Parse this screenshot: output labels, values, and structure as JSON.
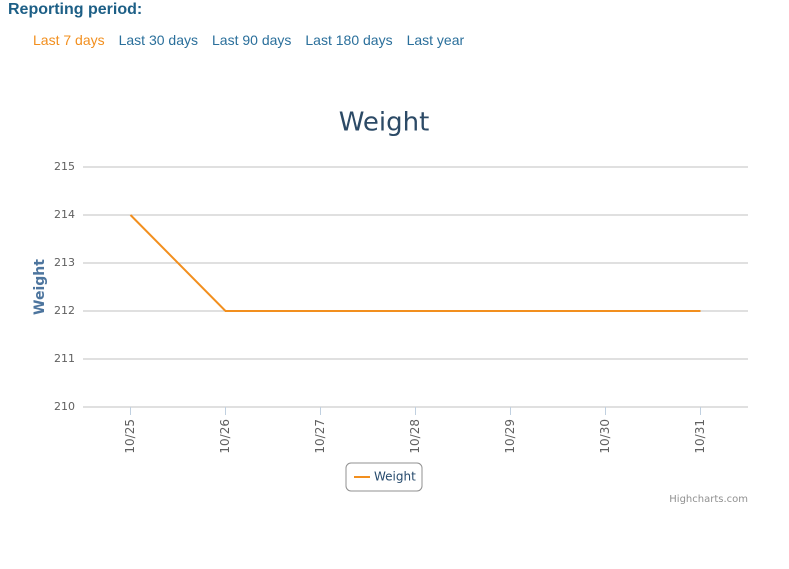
{
  "header": {
    "title": "Reporting period:"
  },
  "periods": [
    "Last 7 days",
    "Last 30 days",
    "Last 90 days",
    "Last 180 days",
    "Last year"
  ],
  "selected_period": 0,
  "chart_data": {
    "type": "line",
    "title": "Weight",
    "y_label": "Weight",
    "categories": [
      "10/25",
      "10/26",
      "10/27",
      "10/28",
      "10/29",
      "10/30",
      "10/31"
    ],
    "series": [
      {
        "name": "Weight",
        "color": "#f28f1e",
        "values": [
          214,
          212,
          212,
          212,
          212,
          212,
          212
        ]
      }
    ],
    "ylim": [
      210,
      215
    ],
    "yticks": [
      210,
      211,
      212,
      213,
      214,
      215
    ],
    "grid": true,
    "credits": "Highcharts.com"
  }
}
